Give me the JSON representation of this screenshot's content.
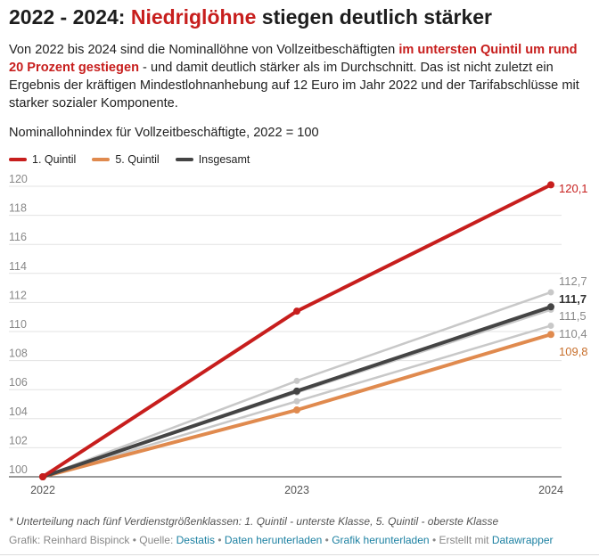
{
  "title": {
    "year_part": "2022 - 2024:",
    "highlight": "Niedriglöhne",
    "rest": "stiegen deutlich stärker"
  },
  "description": {
    "part1": "Von 2022 bis 2024 sind die Nominallöhne von Vollzeitbeschäftigten",
    "highlight": "im untersten Quintil um rund 20 Prozent gestiegen",
    "part2": "- und damit deutlich stärker als im Durchschnitt. Das ist nicht zuletzt ein Ergebnis der kräftigen Mindestlohnanhebung auf 12 Euro im Jahr 2022 und der Tarifabschlüsse mit starker sozialer Komponente."
  },
  "chart_data": {
    "type": "line",
    "title": "Nominallohnindex für Vollzeitbeschäftigte, 2022 = 100",
    "x": [
      "2022",
      "2023",
      "2024"
    ],
    "ylim": [
      100,
      120
    ],
    "yticks": [
      "100",
      "102",
      "104",
      "106",
      "108",
      "110",
      "112",
      "114",
      "116",
      "118",
      "120"
    ],
    "series": [
      {
        "name": "",
        "color": "#c8c8c8",
        "values": [
          100,
          106.6,
          112.7
        ],
        "end_label": "112,7",
        "label_color": "#888888"
      },
      {
        "name": "",
        "color": "#c8c8c8",
        "values": [
          100,
          105.8,
          111.5
        ],
        "end_label": "111,5",
        "label_color": "#888888"
      },
      {
        "name": "",
        "color": "#c8c8c8",
        "values": [
          100,
          105.2,
          110.4
        ],
        "end_label": "110,4",
        "label_color": "#888888"
      },
      {
        "name": "5. Quintil",
        "color": "#e08a4e",
        "values": [
          100,
          104.6,
          109.8
        ],
        "end_label": "109,8",
        "label_color": "#c86f2c"
      },
      {
        "name": "Insgesamt",
        "color": "#444444",
        "values": [
          100,
          105.9,
          111.7
        ],
        "end_label": "111,7",
        "label_color": "#333333"
      },
      {
        "name": "1. Quintil",
        "color": "#c71e1d",
        "values": [
          100,
          111.4,
          120.1
        ],
        "end_label": "120,1",
        "label_color": "#c71e1d"
      }
    ],
    "legend": [
      "1. Quintil",
      "5. Quintil",
      "Insgesamt"
    ],
    "legend_placement": "top-left"
  },
  "footer": {
    "note": "* Unterteilung nach fünf Verdienstgrößenklassen: 1. Quintil - unterste Klasse, 5. Quintil - oberste Klasse",
    "credit_prefix": "Grafik: Reinhard Bispinck • Quelle:",
    "source": "Destatis",
    "sep1": "•",
    "download_data": "Daten herunterladen",
    "sep2": "•",
    "download_chart": "Grafik herunterladen",
    "made_with": "• Erstellt mit",
    "datawrapper": "Datawrapper"
  }
}
